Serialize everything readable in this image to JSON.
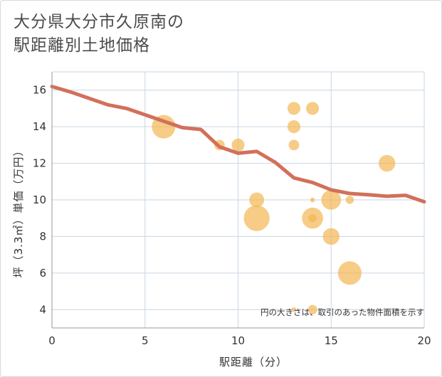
{
  "title_lines": [
    "大分県大分市久原南の",
    "駅距離別土地価格"
  ],
  "chart_data": {
    "type": "scatter",
    "title": "大分県大分市久原南の駅距離別土地価格",
    "xlabel": "駅距離（分）",
    "ylabel": "坪（3.3㎡）単価（万円）",
    "xlim": [
      0,
      20
    ],
    "ylim": [
      3,
      17
    ],
    "x_ticks": [
      0,
      5,
      10,
      15,
      20
    ],
    "y_ticks": [
      4,
      6,
      8,
      10,
      12,
      14,
      16
    ],
    "grid": true,
    "note": "円の大きさは、取引のあった物件面積を示す",
    "colors": {
      "bubble": "#f2b652",
      "line": "#d2705a",
      "grid": "#c9d6e3",
      "axis": "#999999"
    },
    "points": [
      {
        "x": 6,
        "y": 14.0,
        "size": 5
      },
      {
        "x": 9,
        "y": 13.0,
        "size": 1
      },
      {
        "x": 10,
        "y": 13.0,
        "size": 1.5
      },
      {
        "x": 11,
        "y": 10.0,
        "size": 2
      },
      {
        "x": 11,
        "y": 9.0,
        "size": 6
      },
      {
        "x": 13,
        "y": 15.0,
        "size": 1.5
      },
      {
        "x": 13,
        "y": 14.0,
        "size": 1.5
      },
      {
        "x": 13,
        "y": 13.0,
        "size": 1
      },
      {
        "x": 13,
        "y": 4.0,
        "size": 0.2
      },
      {
        "x": 14,
        "y": 15.0,
        "size": 1.5
      },
      {
        "x": 14,
        "y": 10.0,
        "size": 0.2
      },
      {
        "x": 14,
        "y": 9.0,
        "size": 4
      },
      {
        "x": 14,
        "y": 9.0,
        "size": 0.6
      },
      {
        "x": 14,
        "y": 4.0,
        "size": 0.8
      },
      {
        "x": 15,
        "y": 10.0,
        "size": 3.5
      },
      {
        "x": 15,
        "y": 8.0,
        "size": 2.5
      },
      {
        "x": 16,
        "y": 10.0,
        "size": 0.6
      },
      {
        "x": 16,
        "y": 6.0,
        "size": 5
      },
      {
        "x": 18,
        "y": 12.0,
        "size": 2.5
      }
    ],
    "trend": {
      "x": [
        0,
        1,
        2,
        3,
        4,
        5,
        6,
        7,
        8,
        9,
        10,
        11,
        12,
        13,
        14,
        15,
        16,
        17,
        18,
        19,
        20
      ],
      "y": [
        16.2,
        15.9,
        15.55,
        15.2,
        15.0,
        14.65,
        14.3,
        13.95,
        13.85,
        12.9,
        12.55,
        12.65,
        12.05,
        11.2,
        10.95,
        10.55,
        10.35,
        10.28,
        10.2,
        10.25,
        9.9
      ]
    }
  }
}
